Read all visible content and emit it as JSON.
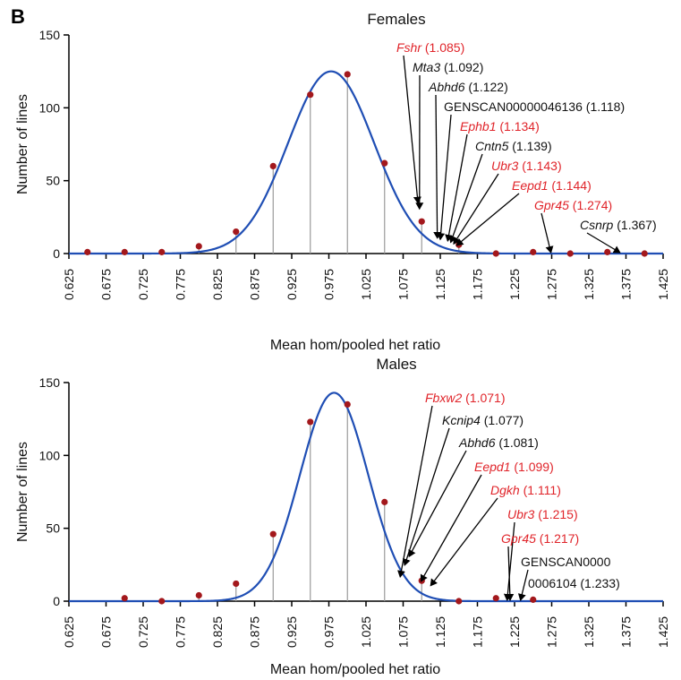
{
  "figure": {
    "panel_letter": "B"
  },
  "chart_data": [
    {
      "type": "scatter",
      "title": "Females",
      "xlabel": "Mean hom/pooled het ratio",
      "ylabel": "Number of lines",
      "xlim": [
        0.625,
        1.425
      ],
      "ylim": [
        0,
        150
      ],
      "x_ticks": [
        "0.625",
        "0.675",
        "0.725",
        "0.775",
        "0.825",
        "0.875",
        "0.925",
        "0.975",
        "1.025",
        "1.075",
        "1.125",
        "1.175",
        "1.225",
        "1.275",
        "1.325",
        "1.375",
        "1.425"
      ],
      "y_ticks": [
        "0",
        "50",
        "100",
        "150"
      ],
      "points": [
        {
          "x": 0.65,
          "y": 1
        },
        {
          "x": 0.7,
          "y": 1
        },
        {
          "x": 0.75,
          "y": 1
        },
        {
          "x": 0.8,
          "y": 5
        },
        {
          "x": 0.85,
          "y": 15
        },
        {
          "x": 0.9,
          "y": 60
        },
        {
          "x": 0.95,
          "y": 109
        },
        {
          "x": 1.0,
          "y": 123
        },
        {
          "x": 1.05,
          "y": 62
        },
        {
          "x": 1.1,
          "y": 22
        },
        {
          "x": 1.15,
          "y": 6
        },
        {
          "x": 1.2,
          "y": 0
        },
        {
          "x": 1.25,
          "y": 1
        },
        {
          "x": 1.3,
          "y": 0
        },
        {
          "x": 1.35,
          "y": 1
        },
        {
          "x": 1.4,
          "y": 0
        }
      ],
      "fit_curve": {
        "type": "gaussian",
        "peak": 125,
        "mean": 0.978,
        "sd": 0.058,
        "color": "#1f4eb4"
      },
      "annotations": [
        {
          "name": "Fshr",
          "value": "(1.085)",
          "color": "#e0242a",
          "target_x": 1.095,
          "target_y": 34
        },
        {
          "name": "Mta3",
          "value": "(1.092)",
          "color": "#111111",
          "target_x": 1.097,
          "target_y": 30
        },
        {
          "name": "Abhd6",
          "value": "(1.122)",
          "color": "#111111",
          "target_x": 1.121,
          "target_y": 10
        },
        {
          "name": "GENSCAN00000046136",
          "value": "(1.118)",
          "color": "#111111",
          "target_x": 1.125,
          "target_y": 9
        },
        {
          "name": "Ephb1",
          "value": "(1.134)",
          "color": "#e0242a",
          "target_x": 1.135,
          "target_y": 8
        },
        {
          "name": "Cntn5",
          "value": "(1.139)",
          "color": "#111111",
          "target_x": 1.139,
          "target_y": 7
        },
        {
          "name": "Ubr3",
          "value": "(1.143)",
          "color": "#e0242a",
          "target_x": 1.143,
          "target_y": 6
        },
        {
          "name": "Eepd1",
          "value": "(1.144)",
          "color": "#e0242a",
          "target_x": 1.147,
          "target_y": 5
        },
        {
          "name": "Gpr45",
          "value": "(1.274)",
          "color": "#e0242a",
          "target_x": 1.274,
          "target_y": 0
        },
        {
          "name": "Csnrp",
          "value": "(1.367)",
          "color": "#111111",
          "target_x": 1.367,
          "target_y": 0
        }
      ]
    },
    {
      "type": "scatter",
      "title": "Males",
      "xlabel": "Mean hom/pooled het ratio",
      "ylabel": "Number of lines",
      "xlim": [
        0.625,
        1.425
      ],
      "ylim": [
        0,
        150
      ],
      "x_ticks": [
        "0.625",
        "0.675",
        "0.725",
        "0.775",
        "0.825",
        "0.875",
        "0.925",
        "0.975",
        "1.025",
        "1.075",
        "1.125",
        "1.175",
        "1.225",
        "1.275",
        "1.325",
        "1.375",
        "1.425"
      ],
      "y_ticks": [
        "0",
        "50",
        "100",
        "150"
      ],
      "points": [
        {
          "x": 0.7,
          "y": 2
        },
        {
          "x": 0.75,
          "y": 0
        },
        {
          "x": 0.8,
          "y": 4
        },
        {
          "x": 0.85,
          "y": 12
        },
        {
          "x": 0.9,
          "y": 46
        },
        {
          "x": 0.95,
          "y": 123
        },
        {
          "x": 1.0,
          "y": 135
        },
        {
          "x": 1.05,
          "y": 68
        },
        {
          "x": 1.1,
          "y": 14
        },
        {
          "x": 1.15,
          "y": 0
        },
        {
          "x": 1.2,
          "y": 2
        },
        {
          "x": 1.25,
          "y": 1
        }
      ],
      "fit_curve": {
        "type": "gaussian",
        "peak": 143,
        "mean": 0.982,
        "sd": 0.046,
        "color": "#1f4eb4"
      },
      "annotations": [
        {
          "name": "Fbxw2",
          "value": "(1.071)",
          "color": "#e0242a",
          "target_x": 1.071,
          "target_y": 16
        },
        {
          "name": "Kcnip4",
          "value": "(1.077)",
          "color": "#111111",
          "target_x": 1.077,
          "target_y": 24
        },
        {
          "name": "Abhd6",
          "value": "(1.081)",
          "color": "#111111",
          "target_x": 1.083,
          "target_y": 30
        },
        {
          "name": "Eepd1",
          "value": "(1.099)",
          "color": "#e0242a",
          "target_x": 1.099,
          "target_y": 13
        },
        {
          "name": "Dgkh",
          "value": "(1.111)",
          "color": "#e0242a",
          "target_x": 1.112,
          "target_y": 10
        },
        {
          "name": "Ubr3",
          "value": "(1.215)",
          "color": "#e0242a",
          "target_x": 1.215,
          "target_y": 0
        },
        {
          "name": "Gpr45",
          "value": "(1.217)",
          "color": "#e0242a",
          "target_x": 1.219,
          "target_y": 0
        },
        {
          "name": "GENSCAN0000",
          "value": "",
          "color": "#111111",
          "target_x": 1.233,
          "target_y": 0
        },
        {
          "name": "",
          "value": "0006104 (1.233)",
          "color": "#111111",
          "target_x": null,
          "target_y": null
        }
      ]
    }
  ]
}
